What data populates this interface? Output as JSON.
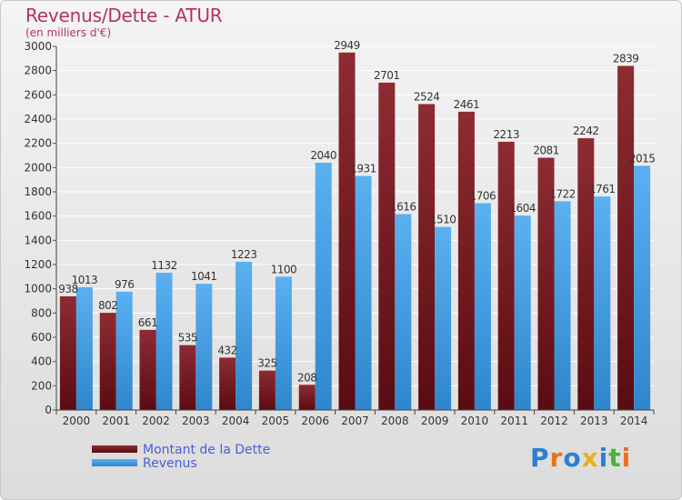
{
  "header": {
    "title": "Revenus/Dette - ATUR",
    "subtitle": "(en milliers d'€)"
  },
  "legend": {
    "items": [
      {
        "label": "Montant de la Dette",
        "color": "#7b1f25"
      },
      {
        "label": "Revenus",
        "color": "#4aa3e6"
      }
    ]
  },
  "logo": {
    "text": "Proxiti",
    "colors": [
      "#2a7fd4",
      "#e8731e",
      "#2a7fd4",
      "#e8b01e",
      "#2a7fd4",
      "#49b23a",
      "#e8731e"
    ]
  },
  "chart_data": {
    "type": "bar",
    "categories": [
      "2000",
      "2001",
      "2002",
      "2003",
      "2004",
      "2005",
      "2006",
      "2007",
      "2008",
      "2009",
      "2010",
      "2011",
      "2012",
      "2013",
      "2014"
    ],
    "series": [
      {
        "name": "Montant de la Dette",
        "color": "#7b1f25",
        "values": [
          938,
          802,
          661,
          535,
          432,
          325,
          208,
          2949,
          2701,
          2524,
          2461,
          2213,
          2081,
          2242,
          2839
        ]
      },
      {
        "name": "Revenus",
        "color": "#4aa3e6",
        "values": [
          1013,
          976,
          1132,
          1041,
          1223,
          1100,
          2040,
          1931,
          1616,
          1510,
          1706,
          1604,
          1722,
          1761,
          2015
        ]
      }
    ],
    "ylim": [
      0,
      3000
    ],
    "yticks": [
      0,
      200,
      400,
      600,
      800,
      1000,
      1200,
      1400,
      1600,
      1800,
      2000,
      2200,
      2400,
      2600,
      2800,
      3000
    ],
    "grid": true,
    "legend_position": "bottom-left"
  }
}
